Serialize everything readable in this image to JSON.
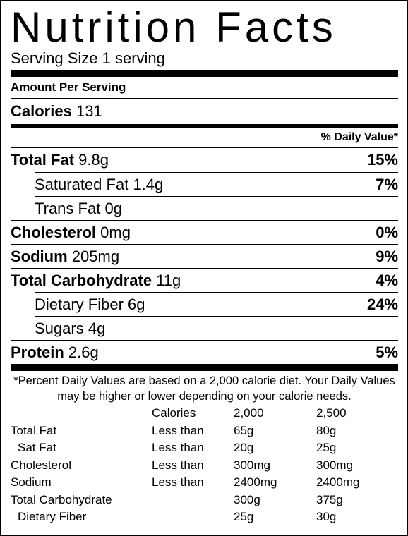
{
  "header": {
    "title": "Nutrition Facts",
    "serving_size": "Serving Size 1 serving"
  },
  "amount_per_serving": "Amount Per Serving",
  "calories": {
    "label": "Calories",
    "value": "131"
  },
  "daily_value_header": "% Daily Value*",
  "nutrients": [
    {
      "name": "Total Fat",
      "amount": "9.8g",
      "daily_value": "15%"
    },
    {
      "name": "Saturated Fat",
      "amount": "1.4g",
      "daily_value": "7%"
    },
    {
      "name": "Trans Fat",
      "amount": "0g"
    },
    {
      "name": "Cholesterol",
      "amount": "0mg",
      "daily_value": "0%"
    },
    {
      "name": "Sodium",
      "amount": "205mg",
      "daily_value": "9%"
    },
    {
      "name": "Total Carbohydrate",
      "amount": "11g",
      "daily_value": "4%"
    },
    {
      "name": "Dietary Fiber",
      "amount": "6g",
      "daily_value": "24%"
    },
    {
      "name": "Sugars",
      "amount": "4g"
    },
    {
      "name": "Protein",
      "amount": "2.6g",
      "daily_value": "5%"
    }
  ],
  "footnote": "*Percent Daily Values are based on a 2,000 calorie diet. Your Daily Values may be higher or lower depending on your calorie needs.",
  "reference_table": {
    "header": {
      "calories": "Calories",
      "levels": [
        "2,000",
        "2,500"
      ]
    },
    "rows": [
      {
        "nutrient": "Total Fat",
        "qualifier": "Less than",
        "values": [
          "65g",
          "80g"
        ]
      },
      {
        "nutrient": "Sat Fat",
        "qualifier": "Less than",
        "values": [
          "20g",
          "25g"
        ]
      },
      {
        "nutrient": "Cholesterol",
        "qualifier": "Less than",
        "values": [
          "300mg",
          "300mg"
        ]
      },
      {
        "nutrient": "Sodium",
        "qualifier": "Less than",
        "values": [
          "2400mg",
          "2400mg"
        ]
      },
      {
        "nutrient": "Total Carbohydrate",
        "values": [
          "300g",
          "375g"
        ]
      },
      {
        "nutrient": "Dietary Fiber",
        "values": [
          "25g",
          "30g"
        ]
      }
    ]
  }
}
